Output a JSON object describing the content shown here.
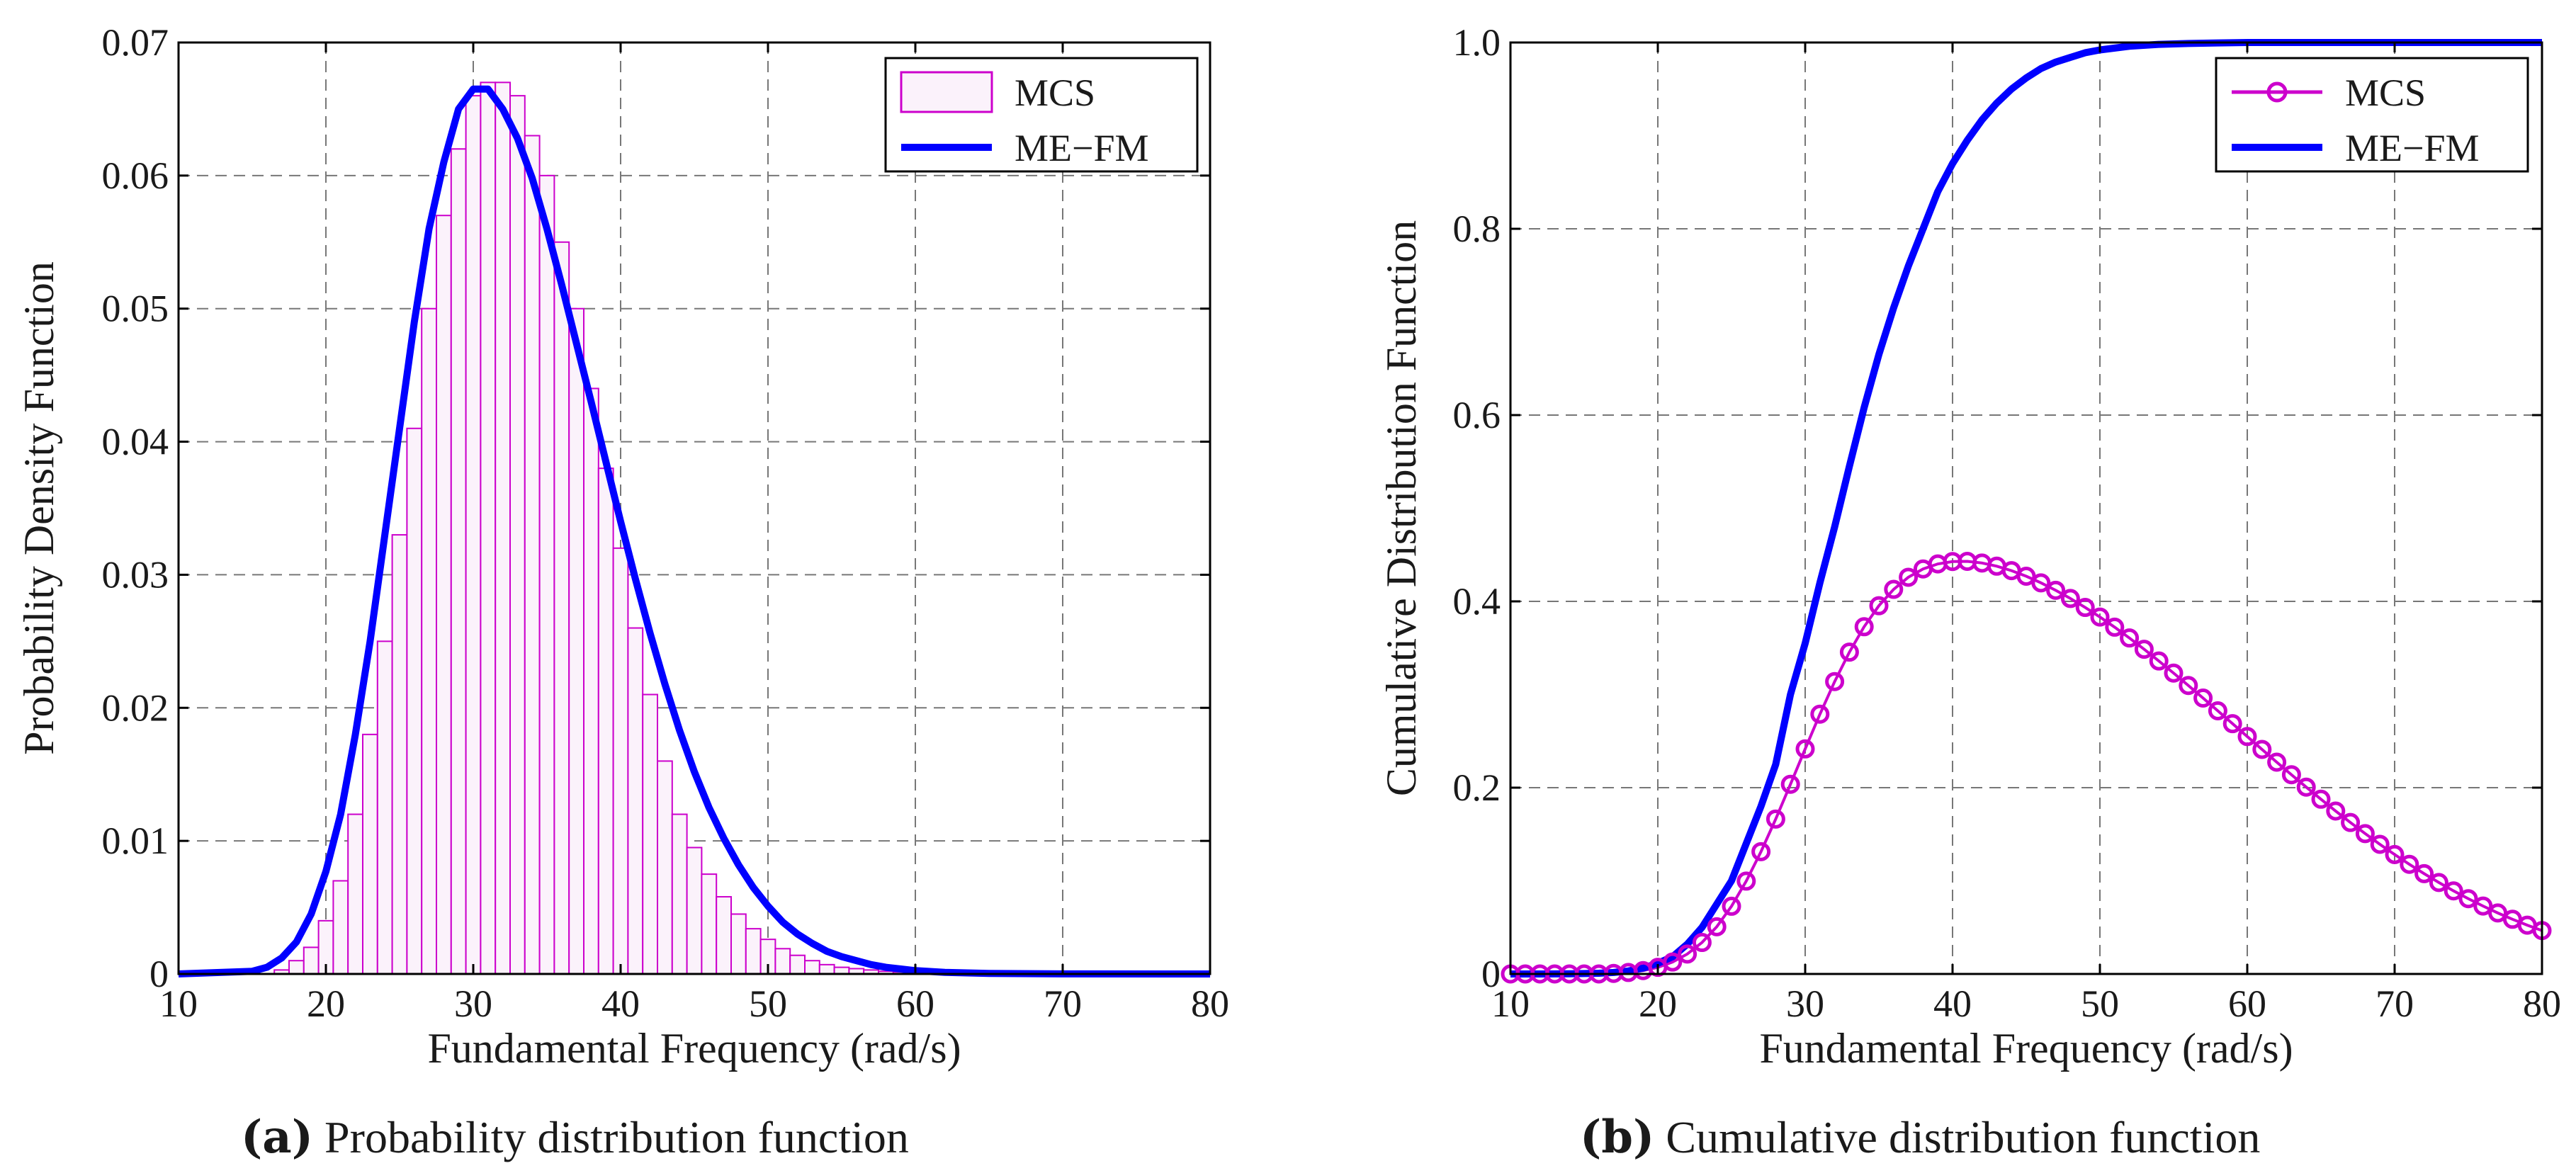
{
  "chart_data": [
    {
      "type": "bar",
      "panel_tag": "(a)",
      "caption": "Probability distribution function",
      "xlabel": "Fundamental Frequency (rad/s)",
      "ylabel": "Probability Density Function",
      "xlim": [
        10,
        80
      ],
      "ylim": [
        0,
        0.07
      ],
      "xticks": [
        "10",
        "20",
        "30",
        "40",
        "50",
        "60",
        "70",
        "80"
      ],
      "yticks": [
        "0",
        "0.01",
        "0.02",
        "0.03",
        "0.04",
        "0.05",
        "0.06",
        "0.07"
      ],
      "grid": true,
      "legend_position": "top-right",
      "series": [
        {
          "name": "MCS",
          "kind": "histogram",
          "color": "#cc00cc",
          "bin_width": 1,
          "x": [
            17,
            18,
            19,
            20,
            21,
            22,
            23,
            24,
            25,
            26,
            27,
            28,
            29,
            30,
            31,
            32,
            33,
            34,
            35,
            36,
            37,
            38,
            39,
            40,
            41,
            42,
            43,
            44,
            45,
            46,
            47,
            48,
            49,
            50,
            51,
            52,
            53,
            54,
            55,
            56,
            57,
            58,
            59,
            60,
            61,
            62
          ],
          "values": [
            0.0003,
            0.001,
            0.002,
            0.004,
            0.007,
            0.012,
            0.018,
            0.025,
            0.033,
            0.041,
            0.05,
            0.057,
            0.062,
            0.066,
            0.067,
            0.067,
            0.066,
            0.063,
            0.06,
            0.055,
            0.05,
            0.044,
            0.038,
            0.032,
            0.026,
            0.021,
            0.016,
            0.012,
            0.0095,
            0.0075,
            0.0058,
            0.0045,
            0.0034,
            0.0026,
            0.0019,
            0.0014,
            0.001,
            0.0007,
            0.0005,
            0.0004,
            0.0003,
            0.0002,
            0.00015,
            0.0001,
            7e-05,
            5e-05
          ]
        },
        {
          "name": "ME−FM",
          "kind": "line",
          "color": "#0000ff",
          "x": [
            10,
            15,
            16,
            17,
            18,
            19,
            20,
            21,
            22,
            23,
            24,
            25,
            26,
            27,
            28,
            29,
            30,
            31,
            32,
            33,
            34,
            35,
            36,
            37,
            38,
            39,
            40,
            41,
            42,
            43,
            44,
            45,
            46,
            47,
            48,
            49,
            50,
            51,
            52,
            53,
            54,
            55,
            56,
            57,
            58,
            60,
            62,
            65,
            70,
            80
          ],
          "values": [
            0,
            0.0002,
            0.0005,
            0.0012,
            0.0024,
            0.0045,
            0.0077,
            0.012,
            0.018,
            0.025,
            0.033,
            0.041,
            0.049,
            0.056,
            0.061,
            0.065,
            0.0665,
            0.0665,
            0.065,
            0.0628,
            0.0598,
            0.056,
            0.0518,
            0.0474,
            0.043,
            0.0385,
            0.034,
            0.0297,
            0.0256,
            0.0218,
            0.0183,
            0.0152,
            0.0125,
            0.0102,
            0.0082,
            0.0065,
            0.0051,
            0.0039,
            0.003,
            0.0023,
            0.0017,
            0.0013,
            0.001,
            0.0007,
            0.0005,
            0.00025,
            0.00012,
            4e-05,
            5e-06,
            0
          ]
        }
      ]
    },
    {
      "type": "line",
      "panel_tag": "(b)",
      "caption": "Cumulative distribution function",
      "xlabel": "Fundamental Frequency (rad/s)",
      "ylabel": "Cumulative Distribution Function",
      "xlim": [
        10,
        80
      ],
      "ylim": [
        0,
        1
      ],
      "xticks": [
        "10",
        "20",
        "30",
        "40",
        "50",
        "60",
        "70",
        "80"
      ],
      "yticks": [
        "0",
        "0.2",
        "0.4",
        "0.6",
        "0.8",
        "1.0"
      ],
      "grid": true,
      "legend_position": "top-right",
      "series": [
        {
          "name": "MCS",
          "marker": "circle",
          "color": "#cc00cc",
          "x": [
            10,
            11,
            12,
            13,
            14,
            15,
            16,
            17,
            18,
            19,
            20,
            21,
            22,
            23,
            24,
            25,
            26,
            27,
            28,
            29,
            30,
            31,
            32,
            33,
            34,
            35,
            36,
            37,
            38,
            39,
            40,
            41,
            42,
            43,
            44,
            45,
            46,
            47,
            48,
            49,
            50,
            51,
            52,
            53,
            54,
            55,
            56,
            57,
            58,
            59,
            60,
            61,
            62,
            63,
            64,
            65,
            66,
            67,
            68,
            69,
            70,
            71,
            72,
            73,
            74,
            75,
            76,
            77,
            78,
            79,
            80
          ],
          "values": [
            0,
            0,
            0,
            0,
            0,
            0,
            0,
            0.0006,
            0.0016,
            0.0036,
            0.0071,
            0.0128,
            0.0214,
            0.0338,
            0.0507,
            0.0727,
            0.0997,
            0.1313,
            0.1663,
            0.2036,
            0.2416,
            0.2789,
            0.3139,
            0.3455,
            0.3728,
            0.3953,
            0.4129,
            0.4259,
            0.4348,
            0.4402,
            0.4428,
            0.443,
            0.4412,
            0.4378,
            0.433,
            0.427,
            0.4199,
            0.4119,
            0.4031,
            0.3935,
            0.3832,
            0.3723,
            0.3607,
            0.3486,
            0.336,
            0.323,
            0.3097,
            0.2962,
            0.2825,
            0.2687,
            0.2549,
            0.2411,
            0.2274,
            0.2139,
            0.2006,
            0.1876,
            0.1749,
            0.1626,
            0.1507,
            0.1392,
            0.1282,
            0.1177,
            0.1077,
            0.0982,
            0.0892,
            0.0808,
            0.0729,
            0.0655,
            0.0587,
            0.0524,
            0.0466
          ]
        },
        {
          "name": "ME−FM",
          "color": "#0000ff",
          "x": [
            10,
            12,
            14,
            16,
            17,
            18,
            19,
            20,
            21,
            22,
            23,
            24,
            25,
            26,
            27,
            28,
            29,
            30,
            31,
            32,
            33,
            34,
            35,
            36,
            37,
            38,
            39,
            40,
            41,
            42,
            43,
            44,
            45,
            46,
            47,
            48,
            49,
            50,
            52,
            54,
            56,
            58,
            60,
            65,
            70,
            80
          ],
          "values": [
            0,
            0,
            0.0002,
            0.0008,
            0.0016,
            0.0032,
            0.0063,
            0.0115,
            0.0185,
            0.032,
            0.05,
            0.075,
            0.1,
            0.14,
            0.18,
            0.225,
            0.3,
            0.355,
            0.42,
            0.48,
            0.545,
            0.608,
            0.665,
            0.715,
            0.76,
            0.8,
            0.84,
            0.87,
            0.895,
            0.917,
            0.935,
            0.95,
            0.962,
            0.972,
            0.979,
            0.984,
            0.989,
            0.992,
            0.996,
            0.998,
            0.999,
            0.9995,
            1,
            1,
            1,
            1
          ]
        }
      ]
    }
  ]
}
